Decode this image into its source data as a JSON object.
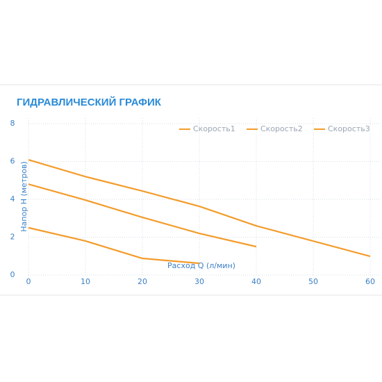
{
  "chart_data": {
    "type": "line",
    "title": "ГИДРАВЛИЧЕСКИЙ ГРАФИК",
    "x_label": "Расход Q (л/мин)",
    "y_label": "Напор Н (метров)",
    "xlim": [
      0,
      60
    ],
    "ylim": [
      0,
      8
    ],
    "xticks": [
      0,
      10,
      20,
      30,
      40,
      50,
      60
    ],
    "yticks": [
      0,
      2,
      4,
      6,
      8
    ],
    "grid": true,
    "legend": "top-right",
    "series": [
      {
        "name": "Скорость1",
        "color": "#f39c2b",
        "x": [
          0,
          10,
          20,
          30
        ],
        "values": [
          2.5,
          1.8,
          0.88,
          0.62
        ]
      },
      {
        "name": "Скорость2",
        "color": "#f39c2b",
        "x": [
          0,
          10,
          20,
          30,
          40
        ],
        "values": [
          4.8,
          3.96,
          3.05,
          2.2,
          1.5
        ]
      },
      {
        "name": "Скорость3",
        "color": "#f39c2b",
        "x": [
          0,
          10,
          20,
          30,
          40,
          60
        ],
        "values": [
          6.09,
          5.2,
          4.44,
          3.63,
          2.6,
          0.99
        ]
      }
    ]
  }
}
